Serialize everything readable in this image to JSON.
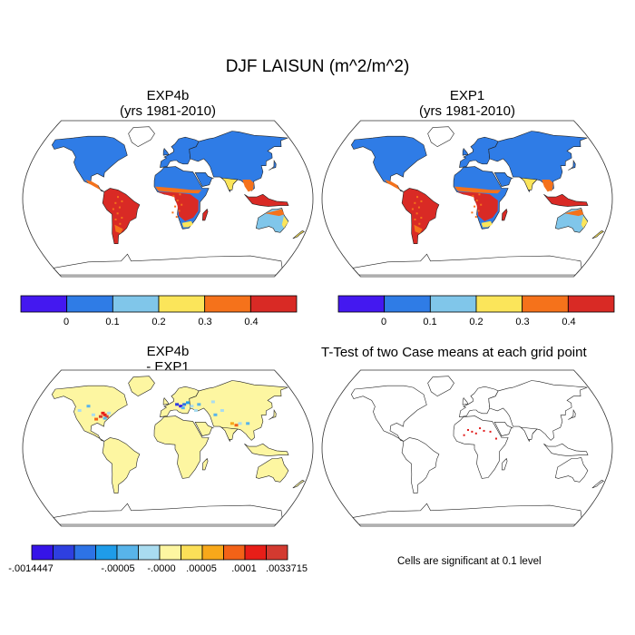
{
  "title": "DJF LAISUN (m^2/m^2)",
  "panels": [
    {
      "title_line1": "EXP4b",
      "title_line2": "(yrs 1981-2010)"
    },
    {
      "title_line1": "EXP1",
      "title_line2": "(yrs 1981-2010)"
    },
    {
      "title_line1": "EXP4b",
      "title_line2": "- EXP1"
    },
    {
      "title_line1": "T-Test of two Case means at each grid point",
      "title_line2": ""
    }
  ],
  "colorbar_main": {
    "colors": [
      "#4418f0",
      "#2f7ce6",
      "#80c6ea",
      "#fbe55a",
      "#f5721b",
      "#d92a25"
    ],
    "tick_labels": [
      "0",
      "0.1",
      "0.2",
      "0.3",
      "0.4"
    ]
  },
  "colorbar_diff": {
    "colors": [
      "#3614e8",
      "#2e3fe0",
      "#2d73e6",
      "#1f9ce9",
      "#58b4ea",
      "#a9dcf0",
      "#fdf6a1",
      "#fbdf58",
      "#f8a81a",
      "#f36217",
      "#e81e18",
      "#d33a30"
    ],
    "tick_labels": [
      "-.0014447",
      "-.00005",
      "-.0000",
      ".00005",
      ".0001",
      ".0033715"
    ]
  },
  "significance_note": "Cells are significant at 0.1 level",
  "map_colors": {
    "ocean": "#ffffff",
    "outline": "#222222",
    "significant": "#e21b1b"
  }
}
